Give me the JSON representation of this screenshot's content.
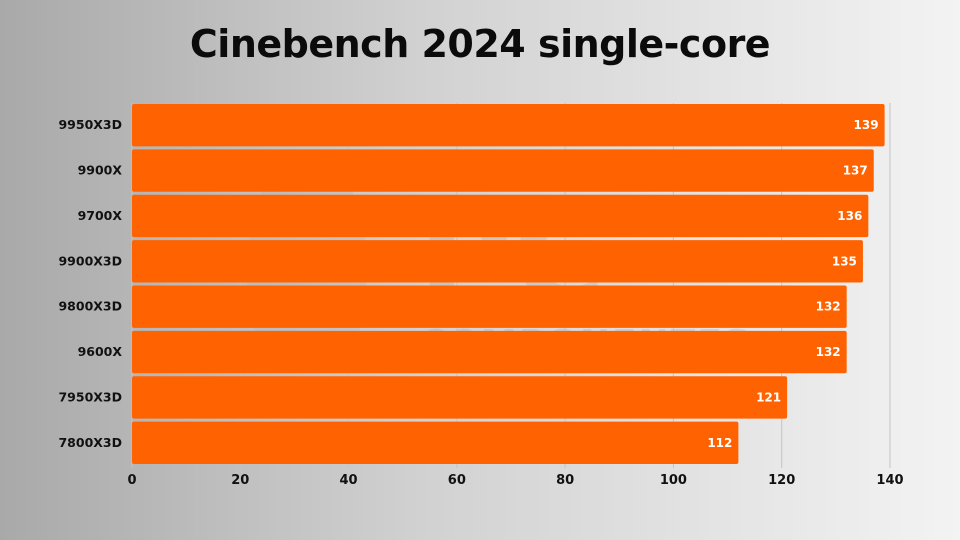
{
  "chart_data": {
    "type": "bar",
    "orientation": "horizontal",
    "title": "Cinebench 2024 single-core",
    "categories": [
      "9950X3D",
      "9900X",
      "9700X",
      "9900X3D",
      "9800X3D",
      "9600X",
      "7950X3D",
      "7800X3D"
    ],
    "values": [
      139,
      137,
      136,
      135,
      132,
      132,
      121,
      112
    ],
    "xlim": [
      0,
      140
    ],
    "xticks": [
      0,
      20,
      40,
      60,
      80,
      100,
      120,
      140
    ],
    "grid": true,
    "bar_color": "#ff6200",
    "data_labels": true
  },
  "watermark": {
    "line1": "PC",
    "line2": "COMPONENTES"
  }
}
